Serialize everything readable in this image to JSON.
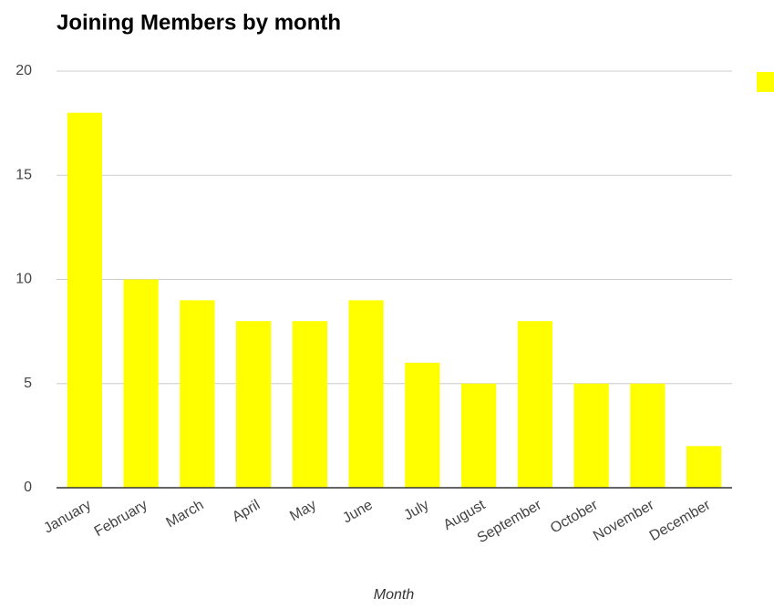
{
  "chart_data": {
    "type": "bar",
    "title": "Joining Members by month",
    "x_label": "Month",
    "categories": [
      "January",
      "February",
      "March",
      "April",
      "May",
      "June",
      "July",
      "August",
      "September",
      "October",
      "November",
      "December"
    ],
    "values": [
      18,
      10,
      9,
      8,
      8,
      9,
      6,
      5,
      8,
      5,
      5,
      2
    ],
    "color": "#ffff00",
    "ylim": [
      0,
      20
    ],
    "yticks": [
      0,
      5,
      10,
      15,
      20
    ],
    "grid": true,
    "legend": "right"
  }
}
